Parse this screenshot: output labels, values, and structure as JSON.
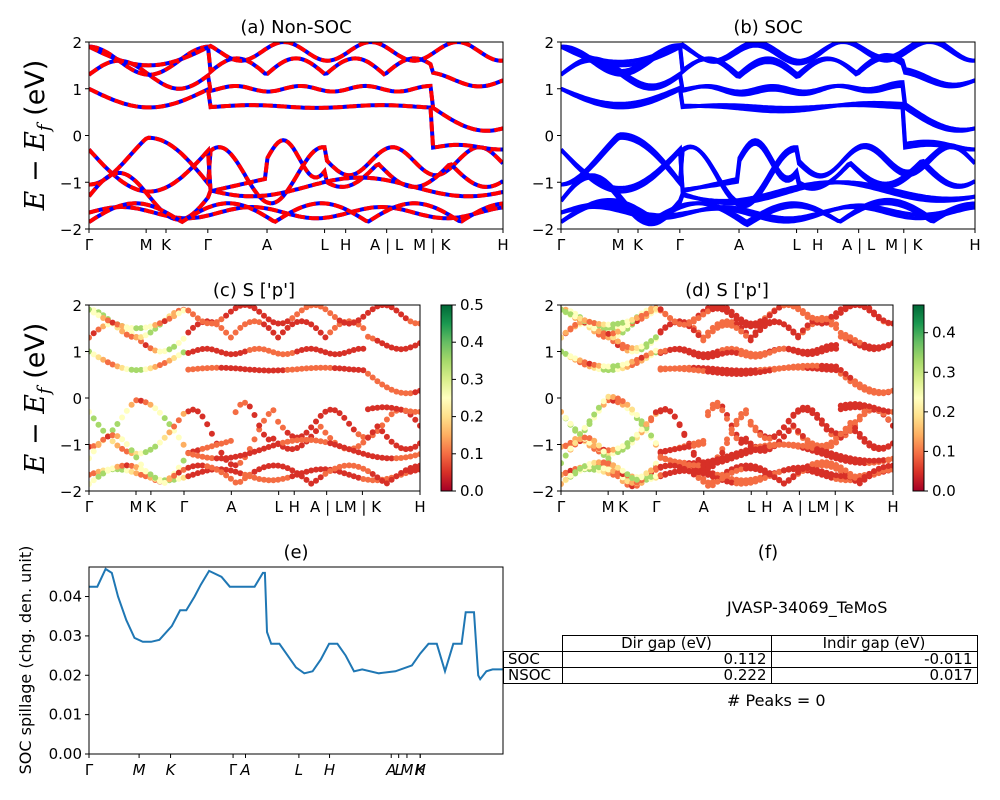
{
  "ylabel_bands": "E - E_f (eV)",
  "panels": {
    "a": {
      "title": "(a) Non-SOC"
    },
    "b": {
      "title": "(b) SOC"
    },
    "c": {
      "title": "(c)  S ['p']"
    },
    "d": {
      "title": "(d) S ['p']"
    },
    "e": {
      "title": "(e)"
    },
    "f": {
      "title": "(f)"
    }
  },
  "kpath_ticks": [
    "Γ",
    "M",
    "K",
    "Γ",
    "A",
    "L",
    "H",
    "A | L",
    "M | K",
    "H"
  ],
  "colorbars": {
    "c": {
      "ticks": [
        "0.0",
        "0.1",
        "0.2",
        "0.3",
        "0.4",
        "0.5"
      ],
      "max": 0.5
    },
    "d": {
      "ticks": [
        "0.0",
        "0.1",
        "0.2",
        "0.3",
        "0.4"
      ],
      "max": 0.47
    }
  },
  "colors": {
    "nonsoc_red": "#ff0000",
    "nonsoc_blue": "#0000ff",
    "soc_blue": "#0000ff",
    "spillage_line": "#1f77b4"
  },
  "chart_data": [
    {
      "type": "line",
      "panel": "a",
      "title": "(a) Non-SOC",
      "ylim": [
        -2,
        2
      ],
      "yticks": [
        "-2",
        "-1",
        "0",
        "1",
        "2"
      ],
      "xticks": [
        "Γ",
        "M",
        "K",
        "Γ",
        "A",
        "L",
        "H",
        "A | L",
        "M | K",
        "H"
      ]
    },
    {
      "type": "line",
      "panel": "b",
      "title": "(b) SOC",
      "ylim": [
        -2,
        2
      ],
      "yticks": [
        "-2",
        "-1",
        "0",
        "1",
        "2"
      ],
      "xticks": [
        "Γ",
        "M",
        "K",
        "Γ",
        "A",
        "L",
        "H",
        "A | L",
        "M | K",
        "H"
      ]
    },
    {
      "type": "scatter",
      "panel": "c",
      "title": "(c)  S ['p']",
      "ylim": [
        -2,
        2
      ],
      "colorbar": [
        0,
        0.5
      ]
    },
    {
      "type": "scatter",
      "panel": "d",
      "title": "(d) S ['p']",
      "ylim": [
        -2,
        2
      ],
      "colorbar": [
        0,
        0.47
      ]
    },
    {
      "type": "line",
      "panel": "e",
      "title": "(e)",
      "ylabel": "SOC spillage (chg. den. unit)",
      "ylim": [
        0,
        0.0475
      ],
      "yticks": [
        "0.00",
        "0.01",
        "0.02",
        "0.03",
        "0.04"
      ],
      "xticks": [
        "Γ",
        "M",
        "K",
        "Γ",
        "A",
        "L",
        "H",
        "A",
        "L",
        "M",
        "K",
        "H"
      ],
      "x": [
        0,
        0.02,
        0.04,
        0.055,
        0.07,
        0.09,
        0.11,
        0.13,
        0.15,
        0.17,
        0.2,
        0.22,
        0.235,
        0.255,
        0.27,
        0.29,
        0.32,
        0.34,
        0.36,
        0.38,
        0.4,
        0.42,
        0.425,
        0.43,
        0.44,
        0.46,
        0.48,
        0.5,
        0.52,
        0.54,
        0.56,
        0.58,
        0.6,
        0.62,
        0.64,
        0.66,
        0.7,
        0.74,
        0.78,
        0.8,
        0.82,
        0.84,
        0.86,
        0.88,
        0.9,
        0.91,
        0.93,
        0.94,
        0.945,
        0.96,
        0.975,
        0.99,
        1.0
      ],
      "values": [
        0.0425,
        0.0425,
        0.047,
        0.046,
        0.04,
        0.034,
        0.0295,
        0.0285,
        0.0285,
        0.029,
        0.0325,
        0.0365,
        0.0365,
        0.04,
        0.043,
        0.0465,
        0.045,
        0.0425,
        0.0425,
        0.0425,
        0.0425,
        0.046,
        0.046,
        0.031,
        0.028,
        0.028,
        0.025,
        0.022,
        0.0205,
        0.021,
        0.024,
        0.028,
        0.028,
        0.025,
        0.021,
        0.0215,
        0.0205,
        0.021,
        0.0225,
        0.0255,
        0.028,
        0.028,
        0.021,
        0.028,
        0.028,
        0.036,
        0.036,
        0.02,
        0.019,
        0.021,
        0.0215,
        0.0215,
        0.0215
      ]
    },
    {
      "type": "table",
      "panel": "f",
      "title": "(f)"
    }
  ],
  "table": {
    "material": "JVASP-34069_TeMoS",
    "headers": [
      "Dir gap (eV)",
      "Indir gap (eV)"
    ],
    "rows": [
      {
        "label": "SOC",
        "dir": "0.112",
        "indir": "-0.011"
      },
      {
        "label": "NSOC",
        "dir": "0.222",
        "indir": "0.017"
      }
    ],
    "peaks": "# Peaks = 0"
  }
}
